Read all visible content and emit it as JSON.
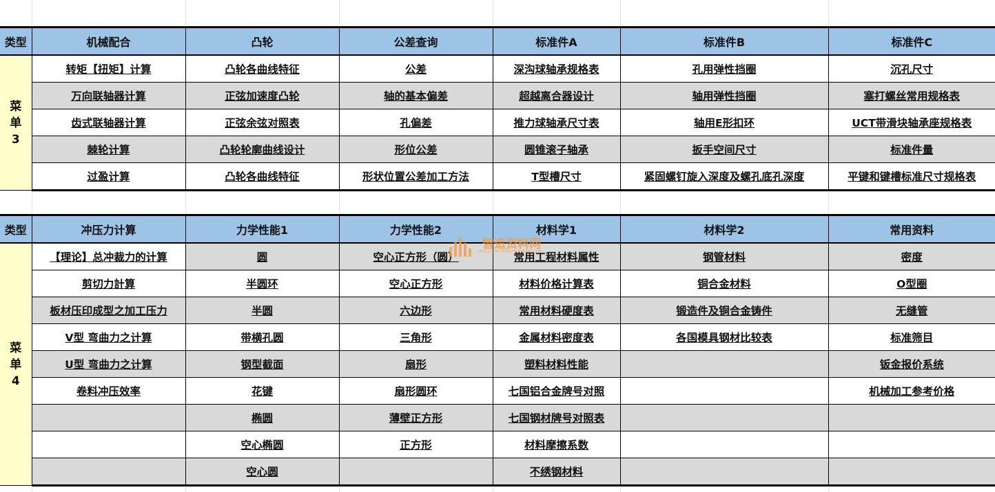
{
  "colors": {
    "header": "#9DC3E6",
    "side": "#FFFFCC",
    "shaded": "#D9D9D9"
  },
  "watermark": {
    "text": "智造资料网",
    "sub": "INTELLIGENT MANUFACTURING DATA"
  },
  "menu3": {
    "type_label": "类型",
    "side_label": [
      "菜",
      "单",
      "3"
    ],
    "headers": [
      "机械配合",
      "凸轮",
      "公差查询",
      "标准件A",
      "标准件B",
      "标准件C"
    ],
    "rows": [
      [
        "转矩【扭矩】计算",
        "凸轮各曲线特征",
        "公差",
        "深沟球轴承规格表",
        "孔用弹性挡圈",
        "沉孔尺寸"
      ],
      [
        "万向联轴器计算",
        "正弦加速度凸轮",
        "轴的基本偏差",
        "超越离合器设计",
        "轴用弹性挡圈",
        "塞打螺丝常用规格表"
      ],
      [
        "齿式联轴器计算",
        "正弦余弦对照表",
        "孔偏差",
        "推力球轴承尺寸表",
        "轴用E形扣环",
        "UCT带滑块轴承座规格表"
      ],
      [
        "棘轮计算",
        "凸轮轮廓曲线设计",
        "形位公差",
        "圆锥滚子轴承",
        "扳手空间尺寸",
        "标准件量"
      ],
      [
        "过盈计算",
        "凸轮各曲线特征",
        "形状位置公差加工方法",
        "T型槽尺寸",
        "紧固螺钉旋入深度及螺孔底孔深度",
        "平键和键槽标准尺寸规格表"
      ]
    ]
  },
  "menu4": {
    "type_label": "类型",
    "side_label": [
      "菜",
      "单",
      "4"
    ],
    "headers": [
      "冲压力计算",
      "力学性能1",
      "力学性能2",
      "材料学1",
      "材料学2",
      "常用资料"
    ],
    "rows": [
      [
        "【理论】总冲裁力的计算",
        "圆",
        "空心正方形（圆）",
        "常用工程材料属性",
        "钢管材料",
        "密度"
      ],
      [
        "剪切力計算",
        "半圆环",
        "空心正方形",
        "材料价格计算表",
        "铜合金材料",
        "O型圈"
      ],
      [
        "板材压印成型之加工压力",
        "半圆",
        "六边形",
        "常用材料硬度表",
        "锻造件及铜合金铸件",
        "无缝管"
      ],
      [
        "V型 弯曲力之计算",
        "带横孔圆",
        "三角形",
        "金属材料密度表",
        "各国模具钢材比较表",
        "标准筛目"
      ],
      [
        "U型 弯曲力之计算",
        "钢型截面",
        "扇形",
        "塑料材料性能",
        "",
        "钣金报价系统"
      ],
      [
        "卷料冲压效率",
        "花键",
        "扇形圆环",
        "七国铝合金牌号对照",
        "",
        "机械加工参考价格"
      ],
      [
        "",
        "椭圆",
        "薄壁正方形",
        "七国钢材牌号对照表",
        "",
        ""
      ],
      [
        "",
        "空心椭圆",
        "正方形",
        "材料摩擦系数",
        "",
        ""
      ],
      [
        "",
        "空心圆",
        "",
        "不绣钢材料",
        "",
        ""
      ]
    ]
  }
}
